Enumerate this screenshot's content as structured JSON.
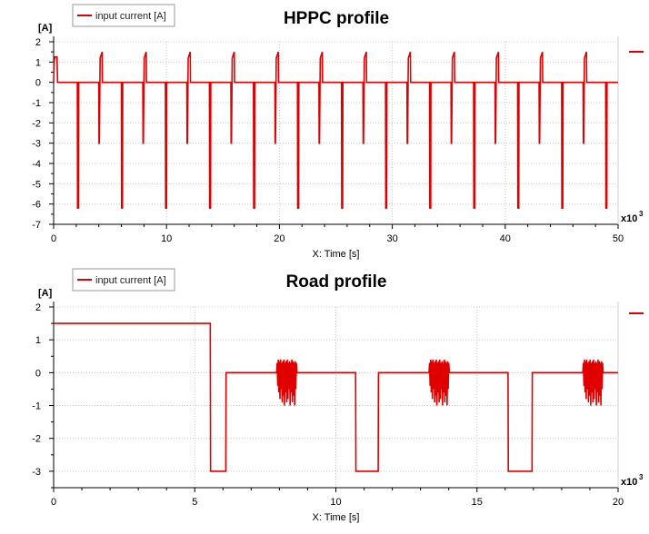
{
  "colors": {
    "series": "#e00000",
    "grid": "#c8c8c8",
    "axis": "#000000"
  },
  "chart_data": [
    {
      "type": "line",
      "title": "HPPC profile",
      "xlabel": "X: Time [s]",
      "ylabel": "[A]",
      "x_multiplier_label": "x10",
      "x_multiplier_exp": "3",
      "xlim": [
        0,
        50
      ],
      "ylim": [
        -7,
        2
      ],
      "xticks": [
        "0",
        "10",
        "20",
        "30",
        "40",
        "50"
      ],
      "yticks": [
        "-7",
        "-6",
        "-5",
        "-4",
        "-3",
        "-2",
        "-1",
        "0",
        "1",
        "2"
      ],
      "legend": {
        "placement": "top-left",
        "entries": [
          "input current [A]"
        ]
      },
      "grid": true,
      "series": [
        {
          "name": "input current [A]",
          "x": [
            0,
            0.05,
            0.1,
            0.3,
            0.35,
            2.1,
            2.12,
            2.2,
            2.22,
            4.0,
            4.02,
            4.05,
            4.1,
            4.12,
            4.3,
            4.32,
            6.0,
            6.02,
            6.1,
            6.12,
            7.9,
            7.92,
            7.95,
            8.0,
            8.02,
            8.2,
            8.22,
            9.9,
            9.92,
            10.0,
            10.02,
            11.8,
            11.82,
            11.85,
            11.9,
            11.92,
            12.1,
            12.12,
            13.8,
            13.82,
            13.9,
            13.92,
            15.7,
            15.72,
            15.75,
            15.8,
            15.82,
            16.0,
            16.02,
            17.7,
            17.72,
            17.8,
            17.82,
            19.6,
            19.62,
            19.65,
            19.7,
            19.72,
            19.9,
            19.92,
            21.6,
            21.62,
            21.7,
            21.72,
            23.5,
            23.52,
            23.55,
            23.6,
            23.62,
            23.8,
            23.82,
            25.5,
            25.52,
            25.6,
            25.62,
            27.4,
            27.42,
            27.45,
            27.5,
            27.52,
            27.7,
            27.72,
            29.4,
            29.42,
            29.5,
            29.52,
            31.3,
            31.32,
            31.35,
            31.4,
            31.42,
            31.6,
            31.62,
            33.3,
            33.32,
            33.4,
            33.42,
            35.2,
            35.22,
            35.25,
            35.3,
            35.32,
            35.5,
            35.52,
            37.2,
            37.22,
            37.3,
            37.32,
            39.1,
            39.12,
            39.15,
            39.2,
            39.22,
            39.4,
            39.42,
            41.1,
            41.12,
            41.2,
            41.22,
            43.0,
            43.02,
            43.05,
            43.1,
            43.12,
            43.3,
            43.32,
            45.0,
            45.02,
            45.1,
            45.12,
            46.9,
            46.92,
            46.95,
            47.0,
            47.02,
            47.2,
            47.22,
            48.9,
            48.92,
            49.0,
            49.02,
            50
          ],
          "y": [
            0,
            1.0,
            1.25,
            1.25,
            0,
            0,
            -6.2,
            -6.2,
            0,
            0,
            -3,
            -3,
            0,
            1.2,
            1.5,
            0,
            0,
            -6.2,
            -6.2,
            0,
            0,
            -3,
            -3,
            0,
            1.2,
            1.5,
            0,
            0,
            -6.2,
            -6.2,
            0,
            0,
            -3,
            -3,
            0,
            1.2,
            1.5,
            0,
            0,
            -6.2,
            -6.2,
            0,
            0,
            -3,
            -3,
            0,
            1.2,
            1.5,
            0,
            0,
            -6.2,
            -6.2,
            0,
            0,
            -3,
            -3,
            0,
            1.2,
            1.5,
            0,
            0,
            -6.2,
            -6.2,
            0,
            0,
            -3,
            -3,
            0,
            1.2,
            1.5,
            0,
            0,
            -6.2,
            -6.2,
            0,
            0,
            -3,
            -3,
            0,
            1.2,
            1.5,
            0,
            0,
            -6.2,
            -6.2,
            0,
            0,
            -3,
            -3,
            0,
            1.2,
            1.5,
            0,
            0,
            -6.2,
            -6.2,
            0,
            0,
            -3,
            -3,
            0,
            1.2,
            1.5,
            0,
            0,
            -6.2,
            -6.2,
            0,
            0,
            -3,
            -3,
            0,
            1.2,
            1.5,
            0,
            0,
            -6.2,
            -6.2,
            0,
            0,
            -3,
            -3,
            0,
            1.2,
            1.5,
            0,
            0,
            -6.2,
            -6.2,
            0,
            0,
            -3,
            -3,
            0,
            1.2,
            1.5,
            0,
            0,
            -6.2,
            -6.2,
            0,
            0
          ]
        }
      ]
    },
    {
      "type": "line",
      "title": "Road profile",
      "xlabel": "X: Time [s]",
      "ylabel": "[A]",
      "x_multiplier_label": "x10",
      "x_multiplier_exp": "3",
      "xlim": [
        0,
        20
      ],
      "ylim": [
        -3.5,
        2
      ],
      "xticks": [
        "0",
        "5",
        "10",
        "15",
        "20"
      ],
      "yticks": [
        "-3",
        "-2",
        "-1",
        "0",
        "1",
        "2"
      ],
      "legend": {
        "placement": "top-left",
        "entries": [
          "input current [A]"
        ]
      },
      "grid": true,
      "series": [
        {
          "name": "input current [A]",
          "x": [
            0,
            5.55,
            5.56,
            6.1,
            6.11,
            7.9,
            7.92,
            7.94,
            7.96,
            7.98,
            8.0,
            8.02,
            8.04,
            8.06,
            8.08,
            8.1,
            8.12,
            8.14,
            8.16,
            8.18,
            8.2,
            8.22,
            8.24,
            8.26,
            8.28,
            8.3,
            8.32,
            8.34,
            8.36,
            8.38,
            8.4,
            8.42,
            8.44,
            8.46,
            8.48,
            8.5,
            8.52,
            8.54,
            8.56,
            8.58,
            8.6,
            8.62,
            10.7,
            10.71,
            11.5,
            11.51,
            13.3,
            13.32,
            13.34,
            13.36,
            13.38,
            13.4,
            13.42,
            13.44,
            13.46,
            13.48,
            13.5,
            13.52,
            13.54,
            13.56,
            13.58,
            13.6,
            13.62,
            13.64,
            13.66,
            13.68,
            13.7,
            13.72,
            13.74,
            13.76,
            13.78,
            13.8,
            13.82,
            13.84,
            13.86,
            13.88,
            13.9,
            13.92,
            13.94,
            13.96,
            13.98,
            14.0,
            14.02,
            16.1,
            16.11,
            16.95,
            16.96,
            18.75,
            18.77,
            18.79,
            18.81,
            18.83,
            18.85,
            18.87,
            18.89,
            18.91,
            18.93,
            18.95,
            18.97,
            18.99,
            19.01,
            19.03,
            19.05,
            19.07,
            19.09,
            19.11,
            19.13,
            19.15,
            19.17,
            19.19,
            19.21,
            19.23,
            19.25,
            19.27,
            19.29,
            19.31,
            19.33,
            19.35,
            19.37,
            19.39,
            19.41,
            19.43,
            19.45,
            19.47,
            20
          ],
          "y": [
            1.5,
            1.5,
            -3,
            -3,
            0,
            0,
            0.3,
            -0.4,
            0.4,
            -0.6,
            0.35,
            -0.8,
            0.4,
            -0.5,
            0.3,
            -0.9,
            0.35,
            -0.7,
            0.4,
            -1.0,
            0.3,
            -0.6,
            0.35,
            -0.9,
            0.4,
            -0.8,
            0.3,
            -0.5,
            0.35,
            -1.0,
            0.3,
            -0.6,
            0.4,
            -0.9,
            0.35,
            -0.7,
            0.3,
            -1.0,
            0.35,
            -0.5,
            0.3,
            0,
            0,
            -3,
            -3,
            0,
            0,
            0.3,
            -0.4,
            0.4,
            -0.6,
            0.35,
            -0.8,
            0.4,
            -0.5,
            0.3,
            -0.9,
            0.35,
            -0.7,
            0.4,
            -1.0,
            0.3,
            -0.6,
            0.35,
            -0.9,
            0.4,
            -0.8,
            0.3,
            -0.5,
            0.35,
            -1.0,
            0.3,
            -0.6,
            0.4,
            -0.9,
            0.35,
            -0.7,
            0.3,
            -1.0,
            0.35,
            -0.5,
            0.3,
            0,
            0,
            -3,
            -3,
            0,
            0,
            0.3,
            -0.4,
            0.4,
            -0.6,
            0.35,
            -0.8,
            0.4,
            -0.5,
            0.3,
            -0.9,
            0.35,
            -0.7,
            0.4,
            -1.0,
            0.3,
            -0.6,
            0.35,
            -0.9,
            0.4,
            -0.8,
            0.3,
            -0.5,
            0.35,
            -1.0,
            0.3,
            -0.6,
            0.4,
            -0.9,
            0.35,
            -0.7,
            0.3,
            -1.0,
            0.35,
            -0.5,
            0.3,
            0,
            0
          ]
        }
      ]
    }
  ]
}
